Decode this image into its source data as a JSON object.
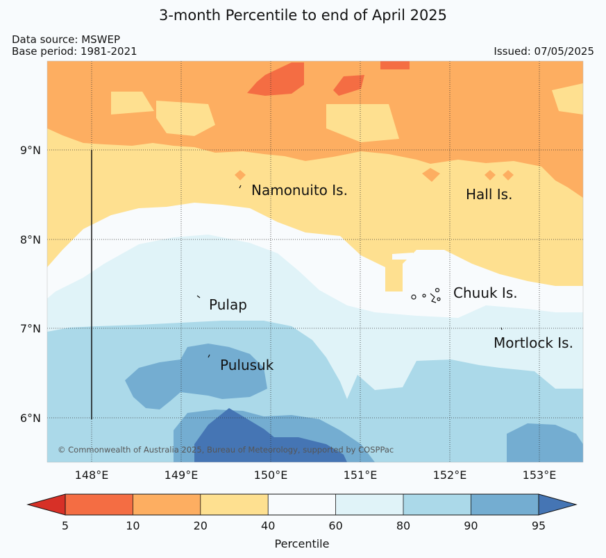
{
  "header": {
    "title": "3-month Percentile to end of April 2025",
    "data_source": "Data source: MSWEP",
    "base_period": "Base period: 1981-2021",
    "issued": "Issued: 07/05/2025"
  },
  "map": {
    "lon_labels": [
      "148°E",
      "149°E",
      "150°E",
      "151°E",
      "152°E",
      "153°E"
    ],
    "lat_labels": [
      "9°N",
      "8°N",
      "7°N",
      "6°N"
    ],
    "places": [
      "Namonuito Is.",
      "Hall Is.",
      "Pulap",
      "Chuuk Is.",
      "Mortlock Is.",
      "Pulusuk"
    ],
    "copyright": "© Commonwealth of Australia 2025, Bureau of Meteorology, supported by COSPPac"
  },
  "legend": {
    "title": "Percentile",
    "ticks": [
      "5",
      "10",
      "20",
      "40",
      "60",
      "80",
      "90",
      "95"
    ],
    "colors": [
      "#d73027",
      "#f46d43",
      "#fdae61",
      "#fee090",
      "#f8fbfd",
      "#e0f3f8",
      "#abd9e9",
      "#74add1",
      "#4575b4"
    ]
  }
}
